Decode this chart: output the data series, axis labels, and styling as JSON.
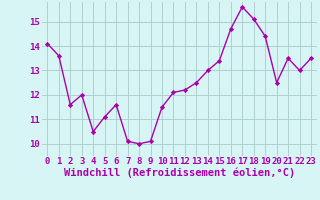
{
  "x": [
    0,
    1,
    2,
    3,
    4,
    5,
    6,
    7,
    8,
    9,
    10,
    11,
    12,
    13,
    14,
    15,
    16,
    17,
    18,
    19,
    20,
    21,
    22,
    23
  ],
  "y": [
    14.1,
    13.6,
    11.6,
    12.0,
    10.5,
    11.1,
    11.6,
    10.1,
    10.0,
    10.1,
    11.5,
    12.1,
    12.2,
    12.5,
    13.0,
    13.4,
    14.7,
    15.6,
    15.1,
    14.4,
    12.5,
    13.5,
    13.0,
    13.5
  ],
  "line_color": "#aa00aa",
  "marker": "D",
  "marker_size": 2.2,
  "bg_color": "#d8f5f5",
  "grid_color": "#b0d0d0",
  "xlabel": "Windchill (Refroidissement éolien,°C)",
  "xlabel_fontsize": 7.5,
  "tick_fontsize": 6.5,
  "ylim": [
    9.5,
    15.8
  ],
  "yticks": [
    10,
    11,
    12,
    13,
    14,
    15
  ],
  "xticks": [
    0,
    1,
    2,
    3,
    4,
    5,
    6,
    7,
    8,
    9,
    10,
    11,
    12,
    13,
    14,
    15,
    16,
    17,
    18,
    19,
    20,
    21,
    22,
    23
  ],
  "xlim": [
    -0.5,
    23.5
  ],
  "linewidth": 1.0
}
